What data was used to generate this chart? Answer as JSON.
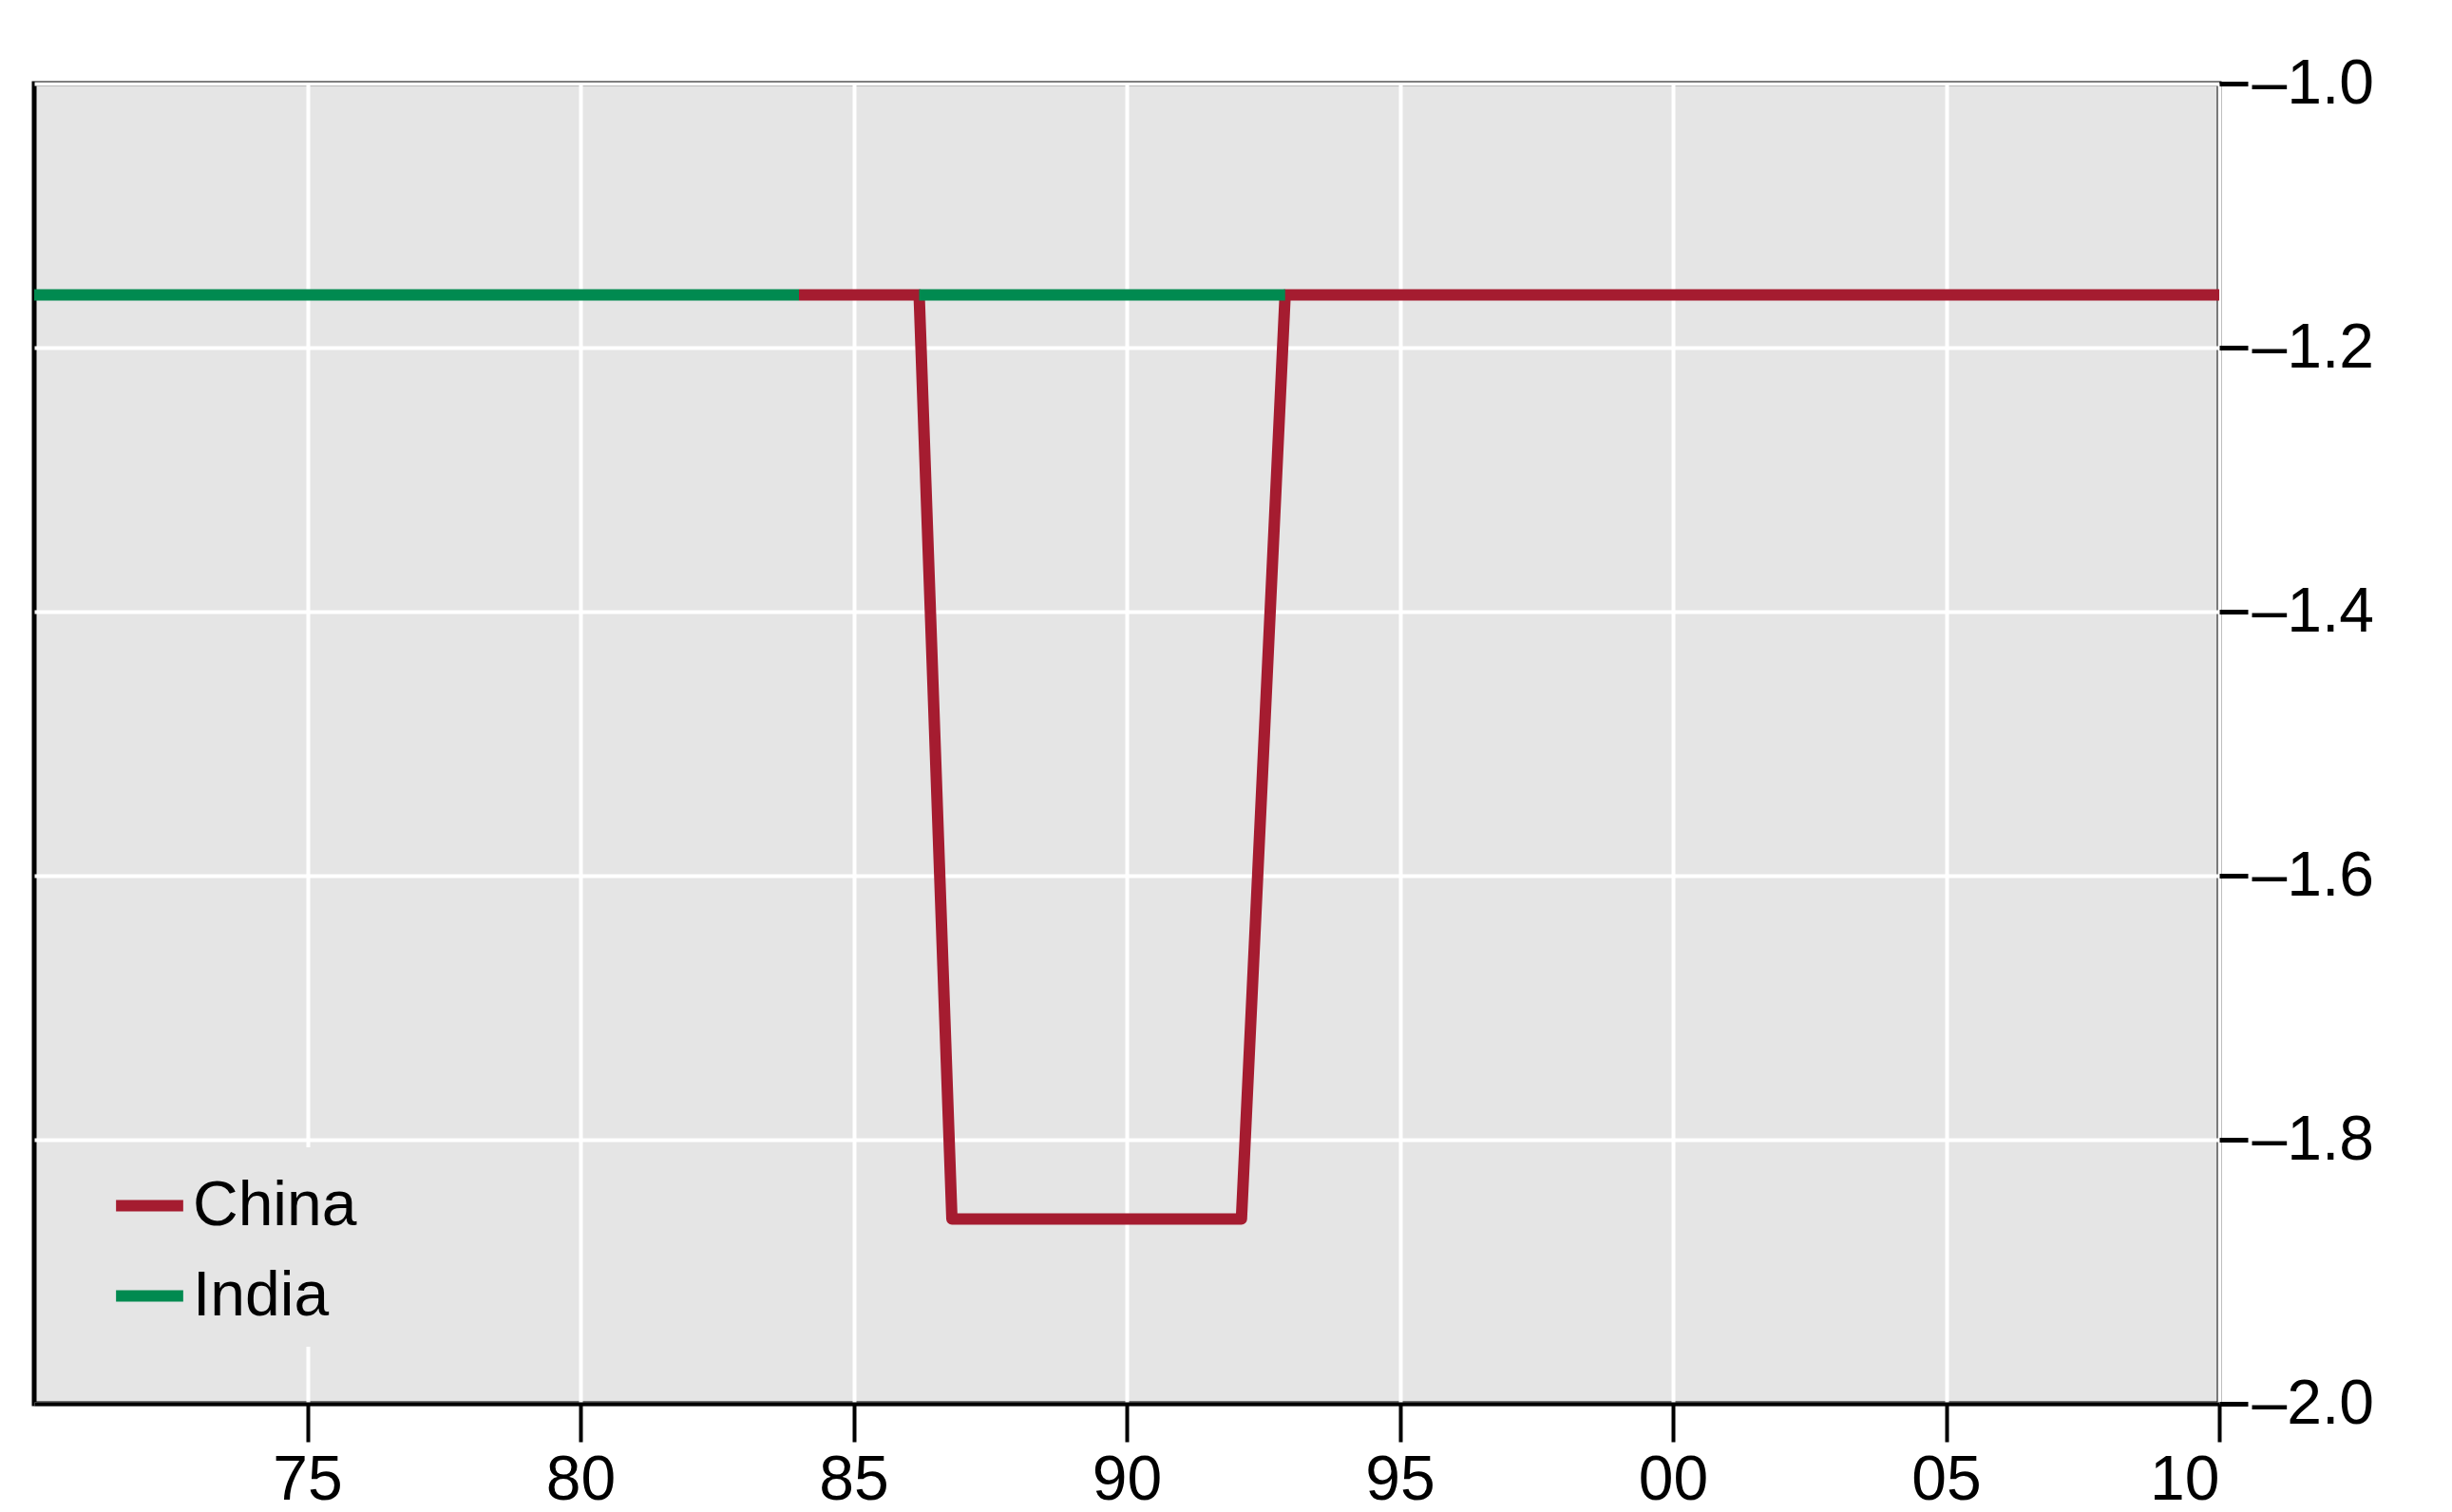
{
  "chart_data": {
    "type": "line",
    "xlim": [
      1970,
      2010
    ],
    "ylim": [
      -2.0,
      -1.0
    ],
    "xticks": [
      {
        "value": 1975,
        "label": "75"
      },
      {
        "value": 1980,
        "label": "80"
      },
      {
        "value": 1985,
        "label": "85"
      },
      {
        "value": 1990,
        "label": "90"
      },
      {
        "value": 1995,
        "label": "95"
      },
      {
        "value": 2000,
        "label": "00"
      },
      {
        "value": 2005,
        "label": "05"
      },
      {
        "value": 2010,
        "label": "10"
      }
    ],
    "yticks": [
      {
        "value": -2.0,
        "label": "–2.0"
      },
      {
        "value": -1.8,
        "label": "–1.8"
      },
      {
        "value": -1.6,
        "label": "–1.6"
      },
      {
        "value": -1.4,
        "label": "–1.4"
      },
      {
        "value": -1.2,
        "label": "–1.2"
      },
      {
        "value": -1.0,
        "label": "–1.0"
      }
    ],
    "grid": true,
    "legend": "bottom left",
    "series": [
      {
        "name": "China",
        "color": "#a51c30",
        "x": [
          1984,
          1986.2,
          1986.8,
          1992.1,
          1992.9,
          2010
        ],
        "values": [
          -1.16,
          -1.16,
          -1.86,
          -1.86,
          -1.16,
          -1.16
        ]
      },
      {
        "name": "India",
        "color": "#008a50",
        "x": [
          1970,
          1984,
          1985,
          1986.2,
          1992.9
        ],
        "values": [
          -1.16,
          -1.16,
          null,
          -1.16,
          -1.16
        ]
      }
    ]
  }
}
